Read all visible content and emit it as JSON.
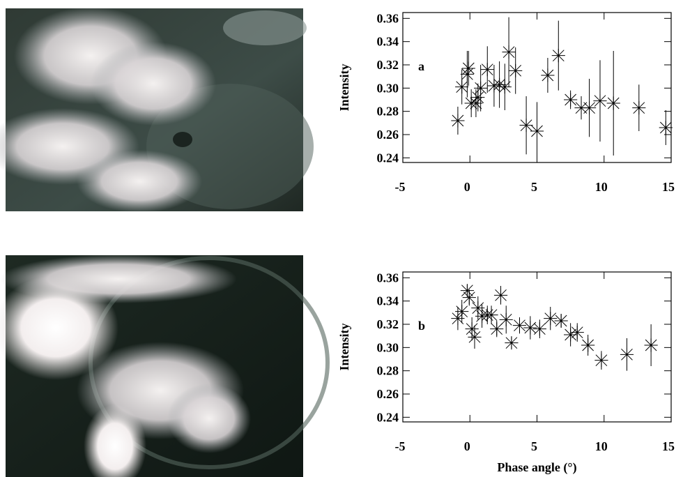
{
  "chart_data": [
    {
      "type": "scatter",
      "label": "a",
      "y_label": "Intensity",
      "x": [
        -0.9,
        -0.6,
        -0.2,
        -0.1,
        0.1,
        0.45,
        0.6,
        0.8,
        1.3,
        1.8,
        2.2,
        2.6,
        2.9,
        3.4,
        4.2,
        5.0,
        5.8,
        6.6,
        7.5,
        8.3,
        8.9,
        9.7,
        10.7,
        12.6,
        14.6
      ],
      "values": [
        0.272,
        0.301,
        0.312,
        0.317,
        0.287,
        0.287,
        0.292,
        0.3,
        0.316,
        0.302,
        0.303,
        0.301,
        0.331,
        0.315,
        0.268,
        0.263,
        0.311,
        0.328,
        0.29,
        0.283,
        0.283,
        0.289,
        0.287,
        0.283,
        0.266
      ],
      "errors": [
        0.012,
        0.015,
        0.02,
        0.015,
        0.012,
        0.012,
        0.012,
        0.02,
        0.02,
        0.018,
        0.02,
        0.02,
        0.03,
        0.02,
        0.025,
        0.025,
        0.015,
        0.03,
        0.008,
        0.01,
        0.025,
        0.035,
        0.045,
        0.02,
        0.015
      ],
      "xlim": [
        -5,
        15
      ],
      "xticks": [
        -5,
        0,
        5,
        10,
        15
      ],
      "ylim": [
        0.236,
        0.365
      ],
      "yticks": [
        0.24,
        0.26,
        0.28,
        {
          "value": 0.3,
          "label": "0.30"
        },
        0.32,
        0.34,
        0.36
      ],
      "color": "#000000"
    },
    {
      "type": "scatter",
      "label": "b",
      "y_label": "Intensity",
      "x_label": "Phase angle (°)",
      "x": [
        -0.9,
        -0.6,
        -0.2,
        -0.05,
        0.15,
        0.35,
        0.6,
        0.9,
        1.3,
        1.6,
        2.0,
        2.3,
        2.7,
        3.1,
        3.7,
        4.5,
        5.2,
        6.0,
        6.8,
        7.5,
        8.0,
        8.8,
        9.8,
        11.7,
        13.5
      ],
      "values": [
        0.325,
        0.331,
        0.349,
        0.343,
        0.316,
        0.309,
        0.334,
        0.327,
        0.328,
        0.328,
        0.316,
        0.345,
        0.324,
        0.304,
        0.319,
        0.317,
        0.316,
        0.325,
        0.323,
        0.311,
        0.313,
        0.302,
        0.289,
        0.294,
        0.302
      ],
      "errors": [
        0.01,
        0.01,
        0.005,
        0.007,
        0.01,
        0.01,
        0.01,
        0.01,
        0.008,
        0.008,
        0.007,
        0.008,
        0.012,
        0.005,
        0.007,
        0.01,
        0.008,
        0.01,
        0.006,
        0.01,
        0.008,
        0.009,
        0.008,
        0.014,
        0.018
      ],
      "xlim": [
        -5,
        15
      ],
      "xticks": [
        -5,
        0,
        5,
        10,
        15
      ],
      "ylim": [
        0.236,
        0.365
      ],
      "yticks": [
        0.24,
        0.26,
        0.28,
        {
          "value": 0.3,
          "label": "0.30"
        },
        0.32,
        0.34,
        0.36
      ],
      "color": "#000000"
    }
  ]
}
